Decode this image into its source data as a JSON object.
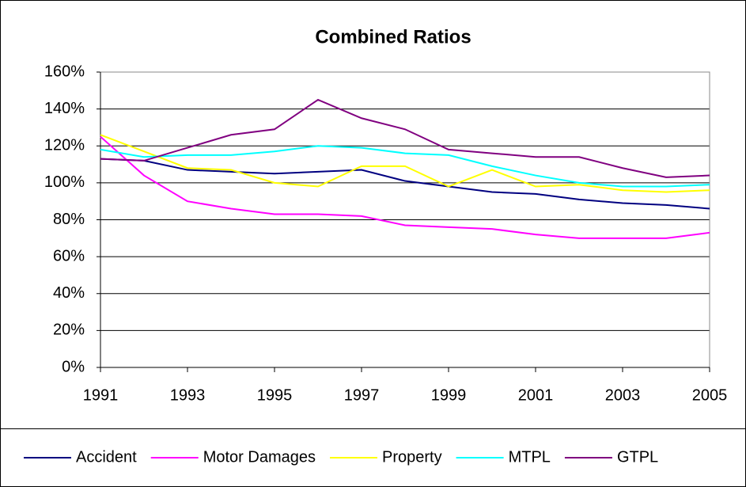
{
  "chart_data": {
    "type": "line",
    "title": "Combined Ratios",
    "x": [
      1991,
      1992,
      1993,
      1994,
      1995,
      1996,
      1997,
      1998,
      1999,
      2000,
      2001,
      2002,
      2003,
      2004,
      2005
    ],
    "xlim": [
      1991,
      2005
    ],
    "xticks": [
      1991,
      1993,
      1995,
      1997,
      1999,
      2001,
      2003,
      2005
    ],
    "ylim": [
      0,
      160
    ],
    "yticks": [
      {
        "value": 0,
        "label": "0%"
      },
      {
        "value": 20,
        "label": "20%"
      },
      {
        "value": 40,
        "label": "40%"
      },
      {
        "value": 60,
        "label": "60%"
      },
      {
        "value": 80,
        "label": "80%"
      },
      {
        "value": 100,
        "label": "100%"
      },
      {
        "value": 120,
        "label": "120%"
      },
      {
        "value": 140,
        "label": "140%"
      },
      {
        "value": 160,
        "label": "160%"
      }
    ],
    "grid": true,
    "legend": "bottom",
    "series": [
      {
        "name": "Accident",
        "color": "#000080",
        "values": [
          113,
          112,
          107,
          106,
          105,
          106,
          107,
          101,
          98,
          95,
          94,
          91,
          89,
          88,
          86
        ]
      },
      {
        "name": "Motor Damages",
        "color": "#ff00ff",
        "values": [
          125,
          104,
          90,
          86,
          83,
          83,
          82,
          77,
          76,
          75,
          72,
          70,
          70,
          70,
          73
        ]
      },
      {
        "name": "Property",
        "color": "#ffff00",
        "values": [
          126,
          117,
          108,
          107,
          100,
          98,
          109,
          109,
          98,
          107,
          98,
          99,
          96,
          95,
          96
        ]
      },
      {
        "name": "MTPL",
        "color": "#00ffff",
        "values": [
          118,
          114,
          115,
          115,
          117,
          120,
          119,
          116,
          115,
          109,
          104,
          100,
          98,
          98,
          99
        ]
      },
      {
        "name": "GTPL",
        "color": "#800080",
        "values": [
          113,
          112,
          119,
          126,
          129,
          145,
          135,
          129,
          118,
          116,
          114,
          114,
          108,
          103,
          104
        ]
      }
    ]
  }
}
